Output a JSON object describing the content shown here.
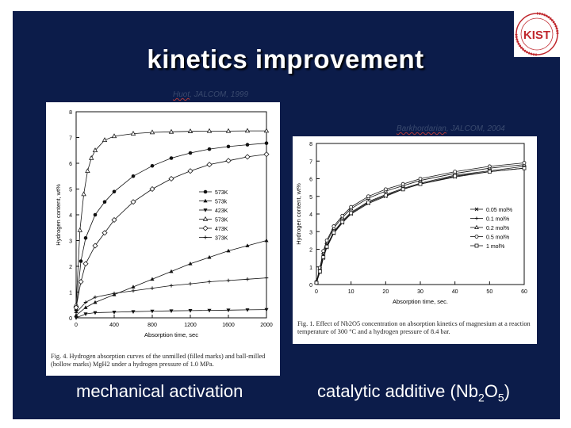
{
  "slide": {
    "title": "kinetics improvement",
    "left_citation": {
      "author": "Huot",
      "rest": ", JALCOM, 1999"
    },
    "right_citation": {
      "author": "Barkhordarian",
      "rest": ", JALCOM, 2004"
    },
    "left_caption": "Fig. 4. Hydrogen absorption curves of the unmilled (filled marks) and ball-milled (hollow marks) MgH2 under a hydrogen pressure of 1.0 MPa.",
    "right_caption": "Fig. 1. Effect of Nb2O5 concentration on absorption kinetics of magnesium at a reaction temperature of 300 °C and a hydrogen pressure of 8.4 bar.",
    "left_label": "mechanical activation",
    "right_label_prefix": "catalytic additive (Nb",
    "right_label_sub1": "2",
    "right_label_mid": "O",
    "right_label_sub2": "5",
    "right_label_suffix": ")",
    "logo_text": "KIST",
    "colors": {
      "background": "#0c1c4a",
      "text": "#ffffff",
      "panel": "#ffffff",
      "logo_red": "#c0282e"
    }
  },
  "chart_data": [
    {
      "type": "line",
      "xlabel": "Absorption time, sec",
      "ylabel": "Hydrogen content, wt%",
      "xlim": [
        0,
        2000
      ],
      "ylim": [
        0,
        8
      ],
      "xticks": [
        0,
        400,
        800,
        1200,
        1600,
        2000
      ],
      "yticks": [
        0,
        1,
        2,
        3,
        4,
        5,
        6,
        7,
        8
      ],
      "legend": "right",
      "series": [
        {
          "name": "573K",
          "marker": "filled-circle",
          "x": [
            0,
            50,
            100,
            200,
            300,
            400,
            600,
            800,
            1000,
            1200,
            1400,
            1600,
            1800,
            2000
          ],
          "values": [
            0.3,
            2.2,
            3.1,
            4.0,
            4.5,
            4.9,
            5.5,
            5.9,
            6.2,
            6.4,
            6.55,
            6.65,
            6.72,
            6.78
          ]
        },
        {
          "name": "573k",
          "marker": "filled-triangle-up",
          "x": [
            0,
            100,
            200,
            400,
            600,
            800,
            1000,
            1200,
            1400,
            1600,
            1800,
            2000
          ],
          "values": [
            0.1,
            0.4,
            0.6,
            0.9,
            1.2,
            1.5,
            1.8,
            2.1,
            2.35,
            2.6,
            2.8,
            3.0
          ]
        },
        {
          "name": "423K",
          "marker": "filled-triangle-down",
          "x": [
            0,
            100,
            200,
            400,
            600,
            800,
            1000,
            1200,
            1400,
            1600,
            1800,
            2000
          ],
          "values": [
            0.0,
            0.15,
            0.2,
            0.22,
            0.24,
            0.26,
            0.27,
            0.28,
            0.29,
            0.3,
            0.31,
            0.32
          ]
        },
        {
          "name": "573K",
          "marker": "open-triangle-up",
          "x": [
            0,
            40,
            80,
            120,
            160,
            200,
            300,
            400,
            600,
            800,
            1000,
            1200,
            1400,
            1600,
            1800,
            2000
          ],
          "values": [
            0.5,
            3.4,
            4.8,
            5.7,
            6.2,
            6.5,
            6.9,
            7.05,
            7.15,
            7.2,
            7.22,
            7.24,
            7.25,
            7.25,
            7.26,
            7.26
          ]
        },
        {
          "name": "473K",
          "marker": "open-diamond",
          "x": [
            0,
            50,
            100,
            200,
            300,
            400,
            600,
            800,
            1000,
            1200,
            1400,
            1600,
            1800,
            2000
          ],
          "values": [
            0.4,
            1.4,
            2.1,
            2.8,
            3.3,
            3.8,
            4.5,
            5.0,
            5.4,
            5.7,
            5.95,
            6.1,
            6.25,
            6.35
          ]
        },
        {
          "name": "373K",
          "marker": "plus",
          "x": [
            0,
            100,
            200,
            400,
            600,
            800,
            1000,
            1200,
            1400,
            1600,
            1800,
            2000
          ],
          "values": [
            0.2,
            0.6,
            0.8,
            0.95,
            1.05,
            1.15,
            1.25,
            1.32,
            1.4,
            1.45,
            1.5,
            1.55
          ]
        }
      ]
    },
    {
      "type": "line",
      "xlabel": "Absorption time, sec.",
      "ylabel": "Hydrogen content, wt%",
      "xlim": [
        0,
        60
      ],
      "ylim": [
        0,
        8
      ],
      "xticks": [
        0,
        10,
        20,
        30,
        40,
        50,
        60
      ],
      "yticks": [
        0,
        1,
        2,
        3,
        4,
        5,
        6,
        7,
        8
      ],
      "legend": "right",
      "series": [
        {
          "name": "0.05 mol%",
          "marker": "x",
          "x": [
            0,
            1,
            2,
            3,
            5,
            7.5,
            10,
            15,
            20,
            25,
            30,
            40,
            50,
            60
          ],
          "values": [
            0.1,
            0.7,
            1.5,
            2.1,
            2.9,
            3.5,
            4.0,
            4.6,
            5.0,
            5.4,
            5.7,
            6.1,
            6.4,
            6.6
          ]
        },
        {
          "name": "0.1 mol%",
          "marker": "plus",
          "x": [
            0,
            1,
            2,
            3,
            5,
            7.5,
            10,
            15,
            20,
            25,
            30,
            40,
            50,
            60
          ],
          "values": [
            0.1,
            0.8,
            1.6,
            2.2,
            3.0,
            3.6,
            4.1,
            4.7,
            5.1,
            5.45,
            5.75,
            6.2,
            6.45,
            6.7
          ]
        },
        {
          "name": "0.2 mol%",
          "marker": "open-triangle-up",
          "x": [
            0,
            1,
            2,
            3,
            5,
            7.5,
            10,
            15,
            20,
            25,
            30,
            40,
            50,
            60
          ],
          "values": [
            0.15,
            0.9,
            1.8,
            2.4,
            3.2,
            3.8,
            4.3,
            4.9,
            5.3,
            5.6,
            5.9,
            6.3,
            6.6,
            6.8
          ]
        },
        {
          "name": "0.5 mol%",
          "marker": "open-circle",
          "x": [
            0,
            1,
            2,
            3,
            5,
            7.5,
            10,
            15,
            20,
            25,
            30,
            40,
            50,
            60
          ],
          "values": [
            0.15,
            0.95,
            1.9,
            2.5,
            3.3,
            3.9,
            4.4,
            5.0,
            5.4,
            5.7,
            6.0,
            6.4,
            6.7,
            6.9
          ]
        },
        {
          "name": "1 mol%",
          "marker": "open-square",
          "x": [
            0,
            1,
            2,
            3,
            5,
            7.5,
            10,
            15,
            20,
            25,
            30,
            40,
            50,
            60
          ],
          "values": [
            0.1,
            0.75,
            1.55,
            2.15,
            2.95,
            3.55,
            4.05,
            4.65,
            5.05,
            5.4,
            5.7,
            6.15,
            6.4,
            6.6
          ]
        }
      ]
    }
  ]
}
